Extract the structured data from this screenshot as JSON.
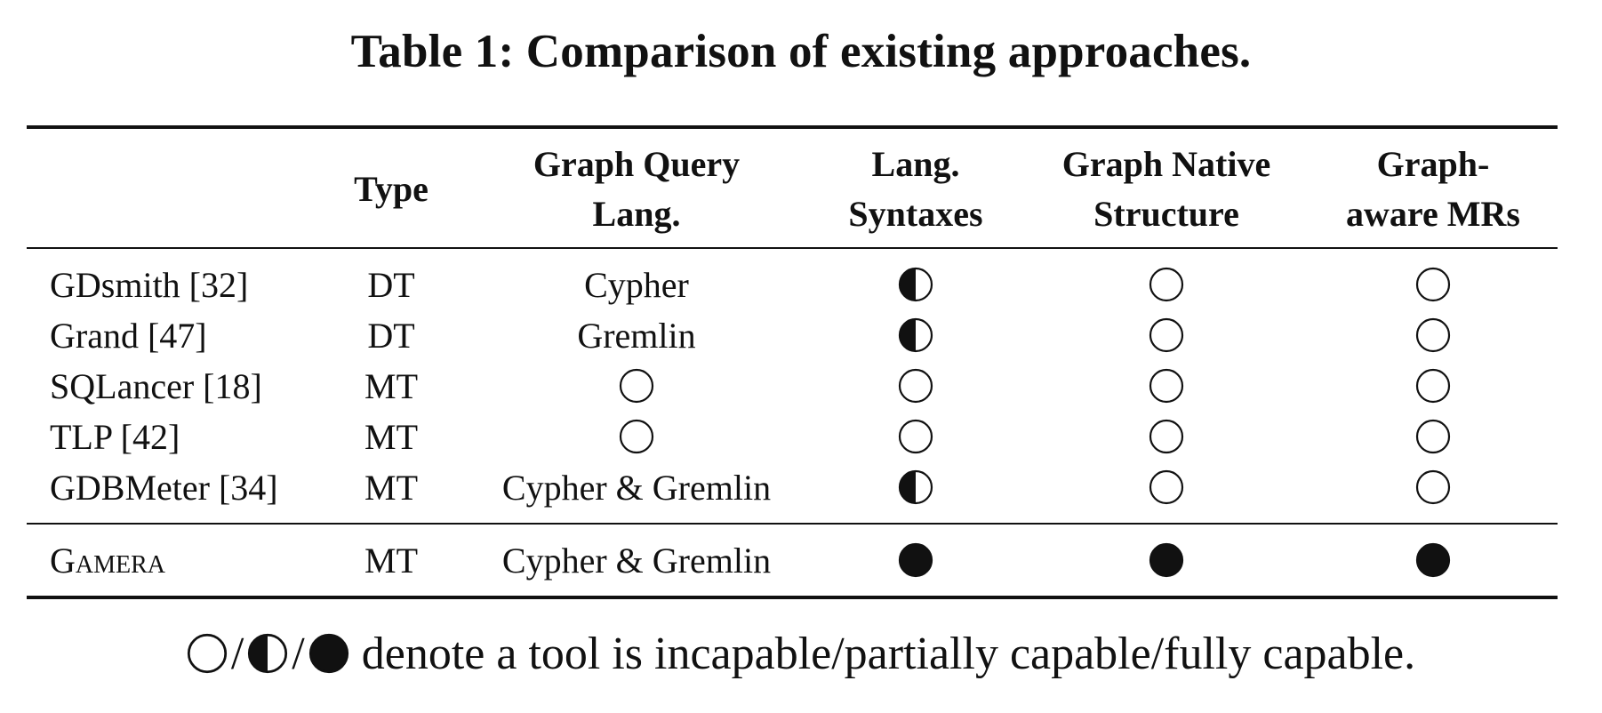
{
  "caption": "Table 1: Comparison of existing approaches.",
  "columns": [
    {
      "key": "tool",
      "lines": [
        ""
      ]
    },
    {
      "key": "type",
      "lines": [
        "Type"
      ]
    },
    {
      "key": "gql",
      "lines": [
        "Graph Query",
        "Lang."
      ]
    },
    {
      "key": "syntax",
      "lines": [
        "Lang.",
        "Syntaxes"
      ]
    },
    {
      "key": "native",
      "lines": [
        "Graph Native",
        "Structure"
      ]
    },
    {
      "key": "mrs",
      "lines": [
        "Graph-",
        "aware MRs"
      ]
    }
  ],
  "rows": [
    {
      "tool": "GDsmith [32]",
      "type": "DT",
      "gql": "Cypher",
      "syntax": "half",
      "native": "empty",
      "mrs": "empty"
    },
    {
      "tool": "Grand [47]",
      "type": "DT",
      "gql": "Gremlin",
      "syntax": "half",
      "native": "empty",
      "mrs": "empty"
    },
    {
      "tool": "SQLancer [18]",
      "type": "MT",
      "gql": "empty",
      "syntax": "empty",
      "native": "empty",
      "mrs": "empty"
    },
    {
      "tool": "TLP [42]",
      "type": "MT",
      "gql": "empty",
      "syntax": "empty",
      "native": "empty",
      "mrs": "empty"
    },
    {
      "tool": "GDBMeter [34]",
      "type": "MT",
      "gql": "Cypher & Gremlin",
      "syntax": "half",
      "native": "empty",
      "mrs": "empty"
    }
  ],
  "highlight_row": {
    "tool": "Gamera",
    "type": "MT",
    "gql": "Cypher & Gremlin",
    "syntax": "full",
    "native": "full",
    "mrs": "full"
  },
  "legend": {
    "symbols": [
      "empty-circle-icon",
      "half-circle-icon",
      "full-circle-icon"
    ],
    "separator": "/",
    "text": "denote a tool is incapable/partially capable/fully capable."
  }
}
